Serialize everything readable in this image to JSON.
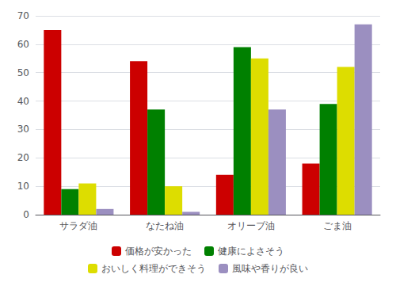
{
  "chart_data": {
    "type": "bar",
    "categories": [
      "サラダ油",
      "なたね油",
      "オリーブ油",
      "ごま油"
    ],
    "series": [
      {
        "name": "価格が安かった",
        "color": "#CC0000",
        "values": [
          65,
          54,
          14,
          18
        ]
      },
      {
        "name": "健康によさそう",
        "color": "#008000",
        "values": [
          9,
          37,
          59,
          39
        ]
      },
      {
        "name": "おいしく料理ができそう",
        "color": "#DDDD00",
        "values": [
          11,
          10,
          55,
          52
        ]
      },
      {
        "name": "風味や香りが良い",
        "color": "#9B8FC0",
        "values": [
          2,
          1,
          37,
          67
        ]
      }
    ],
    "ylim": [
      0,
      70
    ],
    "yticks": [
      0,
      10,
      20,
      30,
      40,
      50,
      60,
      70
    ],
    "grid": true,
    "legend": "bottom"
  }
}
